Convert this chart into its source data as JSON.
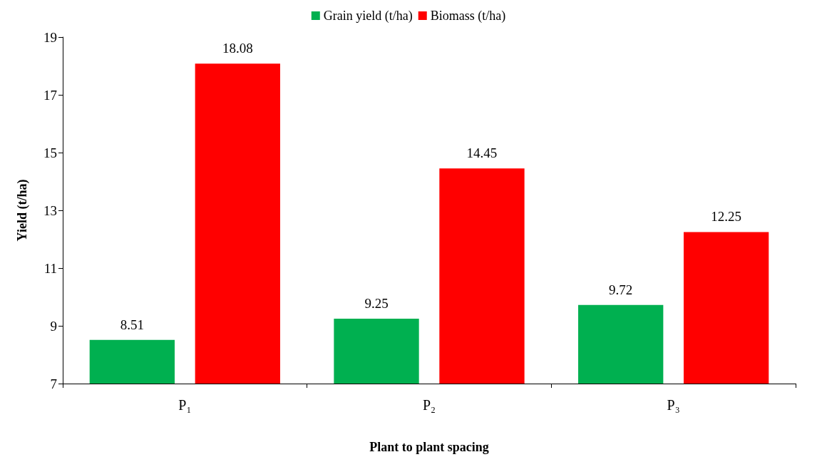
{
  "chart_data": {
    "type": "bar",
    "xlabel": "Plant to plant spacing",
    "ylabel": "Yield (t/ha)",
    "categories": [
      "P₁",
      "P₂",
      "P₃"
    ],
    "series": [
      {
        "name": "Grain yield (t/ha)",
        "color": "#00b050",
        "values": [
          8.51,
          9.25,
          9.72
        ]
      },
      {
        "name": "Biomass (t/ha)",
        "color": "#ff0000",
        "values": [
          18.08,
          14.45,
          12.25
        ]
      }
    ],
    "ylim": [
      7,
      19
    ],
    "yticks": [
      7,
      9,
      11,
      13,
      15,
      17,
      19
    ],
    "grid": false,
    "legend": "top",
    "data_labels": true
  }
}
